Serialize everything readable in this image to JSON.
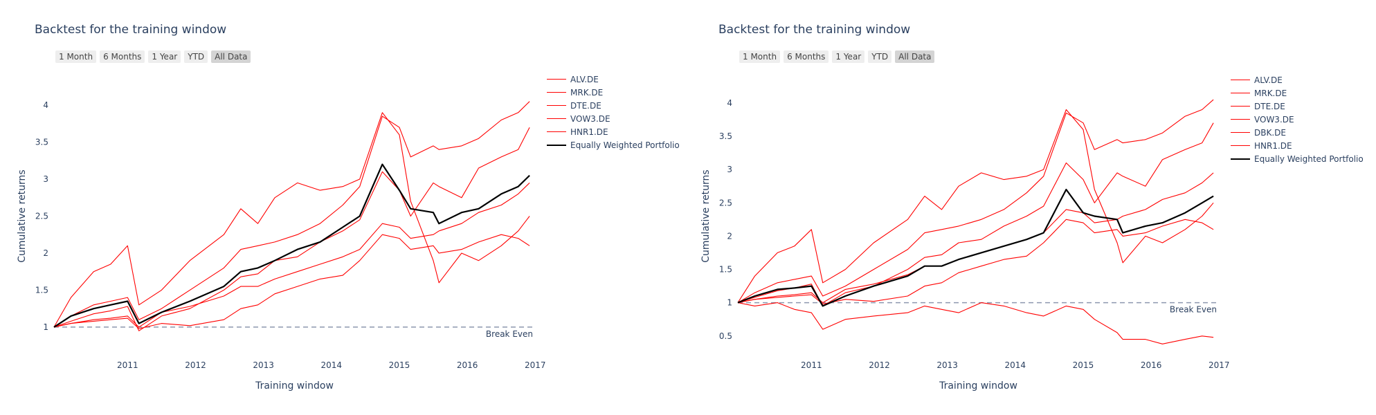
{
  "range_buttons": [
    "1 Month",
    "6 Months",
    "1 Year",
    "YTD",
    "All Data"
  ],
  "active_button": "All Data",
  "colors": {
    "asset": "#ff0000",
    "portfolio": "#000000",
    "break_even": "#8c96ae",
    "text": "#2a3f5f"
  },
  "chart_data": [
    {
      "type": "line",
      "title": "Backtest for the training window",
      "xlabel": "Training window",
      "ylabel": "Cumulative returns",
      "x_range": [
        "2010-06-01",
        "2017-06-30"
      ],
      "x_ticks": [
        "2011",
        "2012",
        "2013",
        "2014",
        "2015",
        "2016",
        "2017"
      ],
      "ylim": [
        0.7,
        4.3
      ],
      "y_ticks": [
        1,
        1.5,
        2,
        2.5,
        3,
        3.5,
        4
      ],
      "grid": false,
      "legend_position": "right",
      "break_even": {
        "value": 1,
        "label": "Break Even"
      },
      "x": [
        "2010-06",
        "2010-09",
        "2011-01",
        "2011-04",
        "2011-07",
        "2011-09",
        "2012-01",
        "2012-06",
        "2012-12",
        "2013-03",
        "2013-06",
        "2013-09",
        "2014-01",
        "2014-05",
        "2014-09",
        "2014-12",
        "2015-04",
        "2015-07",
        "2015-09",
        "2016-01",
        "2016-02",
        "2016-06",
        "2016-09",
        "2017-01",
        "2017-04",
        "2017-06"
      ],
      "series": [
        {
          "name": "ALV.DE",
          "values": [
            1.0,
            1.08,
            1.18,
            1.22,
            1.28,
            0.95,
            1.15,
            1.25,
            1.5,
            1.68,
            1.72,
            1.9,
            1.95,
            2.15,
            2.3,
            2.45,
            3.1,
            2.85,
            2.5,
            2.95,
            2.9,
            2.75,
            3.15,
            3.3,
            3.4,
            3.7
          ]
        },
        {
          "name": "MRK.DE",
          "values": [
            1.0,
            1.15,
            1.3,
            1.35,
            1.4,
            1.1,
            1.25,
            1.5,
            1.8,
            2.05,
            2.1,
            2.15,
            2.25,
            2.4,
            2.65,
            2.9,
            3.85,
            3.7,
            3.3,
            3.45,
            3.4,
            3.45,
            3.55,
            3.8,
            3.9,
            4.05
          ]
        },
        {
          "name": "DTE.DE",
          "values": [
            1.0,
            1.05,
            1.08,
            1.1,
            1.12,
            0.98,
            1.05,
            1.02,
            1.1,
            1.25,
            1.3,
            1.45,
            1.55,
            1.65,
            1.7,
            1.9,
            2.25,
            2.2,
            2.05,
            2.1,
            2.0,
            2.05,
            2.15,
            2.25,
            2.2,
            2.1
          ]
        },
        {
          "name": "VOW3.DE",
          "values": [
            1.0,
            1.4,
            1.75,
            1.85,
            2.1,
            1.3,
            1.5,
            1.9,
            2.25,
            2.6,
            2.4,
            2.75,
            2.95,
            2.85,
            2.9,
            3.0,
            3.9,
            3.6,
            2.7,
            1.9,
            1.6,
            2.0,
            1.9,
            2.1,
            2.3,
            2.5
          ]
        },
        {
          "name": "HNR1.DE",
          "values": [
            1.0,
            1.05,
            1.1,
            1.12,
            1.15,
            1.0,
            1.2,
            1.28,
            1.42,
            1.55,
            1.55,
            1.65,
            1.75,
            1.85,
            1.95,
            2.05,
            2.4,
            2.35,
            2.2,
            2.25,
            2.3,
            2.4,
            2.55,
            2.65,
            2.8,
            2.95
          ]
        },
        {
          "name": "Equally Weighted Portfolio",
          "values": [
            1.0,
            1.15,
            1.25,
            1.3,
            1.35,
            1.05,
            1.2,
            1.35,
            1.55,
            1.75,
            1.8,
            1.9,
            2.05,
            2.15,
            2.35,
            2.5,
            3.2,
            2.85,
            2.6,
            2.55,
            2.4,
            2.55,
            2.6,
            2.8,
            2.9,
            3.05
          ]
        }
      ]
    },
    {
      "type": "line",
      "title": "Backtest for the training window",
      "xlabel": "Training window",
      "ylabel": "Cumulative returns",
      "x_range": [
        "2010-06-01",
        "2017-06-30"
      ],
      "x_ticks": [
        "2011",
        "2012",
        "2013",
        "2014",
        "2015",
        "2016",
        "2017"
      ],
      "ylim": [
        0.3,
        4.3
      ],
      "y_ticks": [
        0.5,
        1,
        1.5,
        2,
        2.5,
        3,
        3.5,
        4
      ],
      "grid": false,
      "legend_position": "right",
      "break_even": {
        "value": 1,
        "label": "Break Even"
      },
      "x": [
        "2010-06",
        "2010-09",
        "2011-01",
        "2011-04",
        "2011-07",
        "2011-09",
        "2012-01",
        "2012-06",
        "2012-12",
        "2013-03",
        "2013-06",
        "2013-09",
        "2014-01",
        "2014-05",
        "2014-09",
        "2014-12",
        "2015-04",
        "2015-07",
        "2015-09",
        "2016-01",
        "2016-02",
        "2016-06",
        "2016-09",
        "2017-01",
        "2017-04",
        "2017-06"
      ],
      "series": [
        {
          "name": "ALV.DE",
          "values": [
            1.0,
            1.08,
            1.18,
            1.22,
            1.28,
            0.95,
            1.15,
            1.25,
            1.5,
            1.68,
            1.72,
            1.9,
            1.95,
            2.15,
            2.3,
            2.45,
            3.1,
            2.85,
            2.5,
            2.95,
            2.9,
            2.75,
            3.15,
            3.3,
            3.4,
            3.7
          ]
        },
        {
          "name": "MRK.DE",
          "values": [
            1.0,
            1.15,
            1.3,
            1.35,
            1.4,
            1.1,
            1.25,
            1.5,
            1.8,
            2.05,
            2.1,
            2.15,
            2.25,
            2.4,
            2.65,
            2.9,
            3.85,
            3.7,
            3.3,
            3.45,
            3.4,
            3.45,
            3.55,
            3.8,
            3.9,
            4.05
          ]
        },
        {
          "name": "DTE.DE",
          "values": [
            1.0,
            1.05,
            1.08,
            1.1,
            1.12,
            0.98,
            1.05,
            1.02,
            1.1,
            1.25,
            1.3,
            1.45,
            1.55,
            1.65,
            1.7,
            1.9,
            2.25,
            2.2,
            2.05,
            2.1,
            2.0,
            2.05,
            2.15,
            2.25,
            2.2,
            2.1
          ]
        },
        {
          "name": "VOW3.DE",
          "values": [
            1.0,
            1.4,
            1.75,
            1.85,
            2.1,
            1.3,
            1.5,
            1.9,
            2.25,
            2.6,
            2.4,
            2.75,
            2.95,
            2.85,
            2.9,
            3.0,
            3.9,
            3.6,
            2.7,
            1.9,
            1.6,
            2.0,
            1.9,
            2.1,
            2.3,
            2.5
          ]
        },
        {
          "name": "DBK.DE",
          "values": [
            1.0,
            0.95,
            1.0,
            0.9,
            0.85,
            0.6,
            0.75,
            0.8,
            0.85,
            0.95,
            0.9,
            0.85,
            1.0,
            0.95,
            0.85,
            0.8,
            0.95,
            0.9,
            0.75,
            0.55,
            0.45,
            0.45,
            0.38,
            0.45,
            0.5,
            0.48
          ]
        },
        {
          "name": "HNR1.DE",
          "values": [
            1.0,
            1.05,
            1.1,
            1.12,
            1.15,
            1.0,
            1.2,
            1.28,
            1.42,
            1.55,
            1.55,
            1.65,
            1.75,
            1.85,
            1.95,
            2.05,
            2.4,
            2.35,
            2.2,
            2.25,
            2.3,
            2.4,
            2.55,
            2.65,
            2.8,
            2.95
          ]
        },
        {
          "name": "Equally Weighted Portfolio",
          "values": [
            1.0,
            1.1,
            1.2,
            1.22,
            1.25,
            0.95,
            1.1,
            1.25,
            1.4,
            1.55,
            1.55,
            1.65,
            1.75,
            1.85,
            1.95,
            2.05,
            2.7,
            2.35,
            2.3,
            2.25,
            2.05,
            2.15,
            2.2,
            2.35,
            2.5,
            2.6
          ]
        }
      ]
    }
  ]
}
